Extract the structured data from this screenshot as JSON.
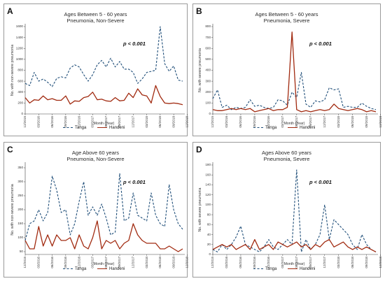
{
  "chart_data": [
    {
      "type": "line",
      "panel_label": "A",
      "title": "Ages Between 5 - 60 years",
      "subtitle": "Pneumonia, Non-Severe",
      "annotation": "p < 0.001",
      "ylabel": "No. with non-severe pneumonia",
      "xlabel": "Month (Year)",
      "ylim": [
        0,
        1600
      ],
      "yticks": [
        "0",
        "200",
        "400",
        "600",
        "800",
        "1000",
        "1200",
        "1400",
        "1600"
      ],
      "xticks": [
        "12/2015",
        "03/2016",
        "06/2016",
        "09/2016",
        "12/2016",
        "03/2017",
        "06/2017",
        "09/2017",
        "12/2017",
        "03/2018",
        "06/2018",
        "09/2018",
        "12/2018"
      ],
      "series": [
        {
          "name": "Tanga",
          "values": [
            560,
            520,
            760,
            600,
            640,
            580,
            500,
            650,
            680,
            660,
            840,
            900,
            860,
            720,
            600,
            720,
            900,
            980,
            860,
            1020,
            860,
            960,
            820,
            820,
            760,
            560,
            640,
            760,
            780,
            800,
            1600,
            920,
            780,
            880,
            620,
            600
          ]
        },
        {
          "name": "Handeni",
          "values": [
            300,
            200,
            260,
            250,
            330,
            260,
            280,
            250,
            250,
            330,
            180,
            240,
            230,
            300,
            320,
            400,
            260,
            270,
            240,
            230,
            300,
            240,
            250,
            380,
            300,
            460,
            350,
            330,
            200,
            520,
            320,
            200,
            190,
            200,
            190,
            170
          ]
        }
      ]
    },
    {
      "type": "line",
      "panel_label": "B",
      "title": "Ages Between 5 - 60 years",
      "subtitle": "Pneumonia, Severe",
      "annotation": "p < 0.001",
      "ylabel": "No. with severe pneumonia",
      "xlabel": "Month (Year)",
      "ylim": [
        0,
        800
      ],
      "yticks": [
        "0",
        "100",
        "200",
        "300",
        "400",
        "500",
        "600",
        "700",
        "800"
      ],
      "xticks": [
        "12/2015",
        "03/2016",
        "06/2016",
        "09/2016",
        "12/2016",
        "03/2017",
        "06/2017",
        "09/2017",
        "12/2017",
        "03/2018",
        "06/2018",
        "09/2018",
        "12/2018"
      ],
      "series": [
        {
          "name": "Tanga",
          "values": [
            140,
            220,
            60,
            80,
            40,
            60,
            50,
            60,
            130,
            70,
            80,
            60,
            50,
            60,
            130,
            120,
            80,
            200,
            150,
            380,
            90,
            60,
            120,
            110,
            130,
            240,
            220,
            230,
            60,
            70,
            60,
            60,
            100,
            70,
            50,
            40
          ]
        },
        {
          "name": "Handeni",
          "values": [
            40,
            30,
            30,
            40,
            50,
            40,
            50,
            40,
            50,
            20,
            30,
            40,
            50,
            30,
            40,
            40,
            60,
            750,
            40,
            20,
            30,
            20,
            30,
            40,
            30,
            40,
            90,
            50,
            40,
            30,
            40,
            50,
            40,
            20,
            30,
            20
          ]
        }
      ]
    },
    {
      "type": "line",
      "panel_label": "C",
      "title": "Age Above 60 years",
      "subtitle": "Pneumonia, Non-Severe",
      "annotation": "p < 0.001",
      "ylabel": "No. with non-severe pneumonia",
      "xlabel": "Month (Year)",
      "ylim": [
        40,
        360
      ],
      "yticks": [
        "50",
        "100",
        "150",
        "200",
        "250",
        "300",
        "350"
      ],
      "xticks": [
        "12/2015",
        "03/2016",
        "06/2016",
        "09/2016",
        "12/2016",
        "03/2017",
        "06/2017",
        "09/2017",
        "12/2017",
        "03/2018",
        "06/2018",
        "09/2018",
        "12/2018"
      ],
      "series": [
        {
          "name": "Tanga",
          "values": [
            90,
            150,
            160,
            200,
            160,
            190,
            320,
            270,
            190,
            200,
            110,
            150,
            230,
            300,
            180,
            210,
            180,
            220,
            170,
            110,
            120,
            330,
            160,
            170,
            260,
            180,
            170,
            160,
            260,
            180,
            150,
            140,
            290,
            200,
            150,
            130
          ]
        },
        {
          "name": "Handeni",
          "values": [
            90,
            60,
            60,
            140,
            70,
            110,
            70,
            110,
            90,
            90,
            100,
            60,
            110,
            70,
            60,
            100,
            160,
            60,
            90,
            80,
            90,
            60,
            80,
            90,
            150,
            110,
            90,
            80,
            80,
            80,
            60,
            60,
            70,
            60,
            50,
            60
          ]
        }
      ]
    },
    {
      "type": "line",
      "panel_label": "D",
      "title": "Ages Above 60 years",
      "subtitle": "Pneumonia, Severe",
      "annotation": "p < 0.001",
      "ylabel": "No. with severe pneumonia",
      "xlabel": "Month (Year)",
      "ylim": [
        0,
        180
      ],
      "yticks": [
        "0",
        "20",
        "40",
        "60",
        "80",
        "100",
        "120",
        "140",
        "160",
        "180"
      ],
      "xticks": [
        "12/2015",
        "03/2016",
        "06/2016",
        "09/2016",
        "12/2016",
        "03/2017",
        "06/2017",
        "09/2017",
        "12/2017",
        "03/2018",
        "06/2018",
        "09/2018",
        "12/2018"
      ],
      "series": [
        {
          "name": "Tanga",
          "values": [
            10,
            5,
            20,
            10,
            20,
            35,
            57,
            20,
            15,
            10,
            5,
            15,
            30,
            15,
            10,
            20,
            30,
            20,
            170,
            5,
            30,
            10,
            20,
            40,
            100,
            30,
            70,
            60,
            50,
            40,
            20,
            10,
            40,
            20,
            10,
            5
          ]
        },
        {
          "name": "Handeni",
          "values": [
            10,
            15,
            20,
            15,
            20,
            10,
            15,
            20,
            10,
            30,
            10,
            15,
            20,
            10,
            25,
            20,
            15,
            20,
            25,
            15,
            20,
            10,
            20,
            15,
            25,
            30,
            15,
            20,
            25,
            15,
            10,
            15,
            10,
            15,
            10,
            5
          ]
        }
      ]
    }
  ]
}
